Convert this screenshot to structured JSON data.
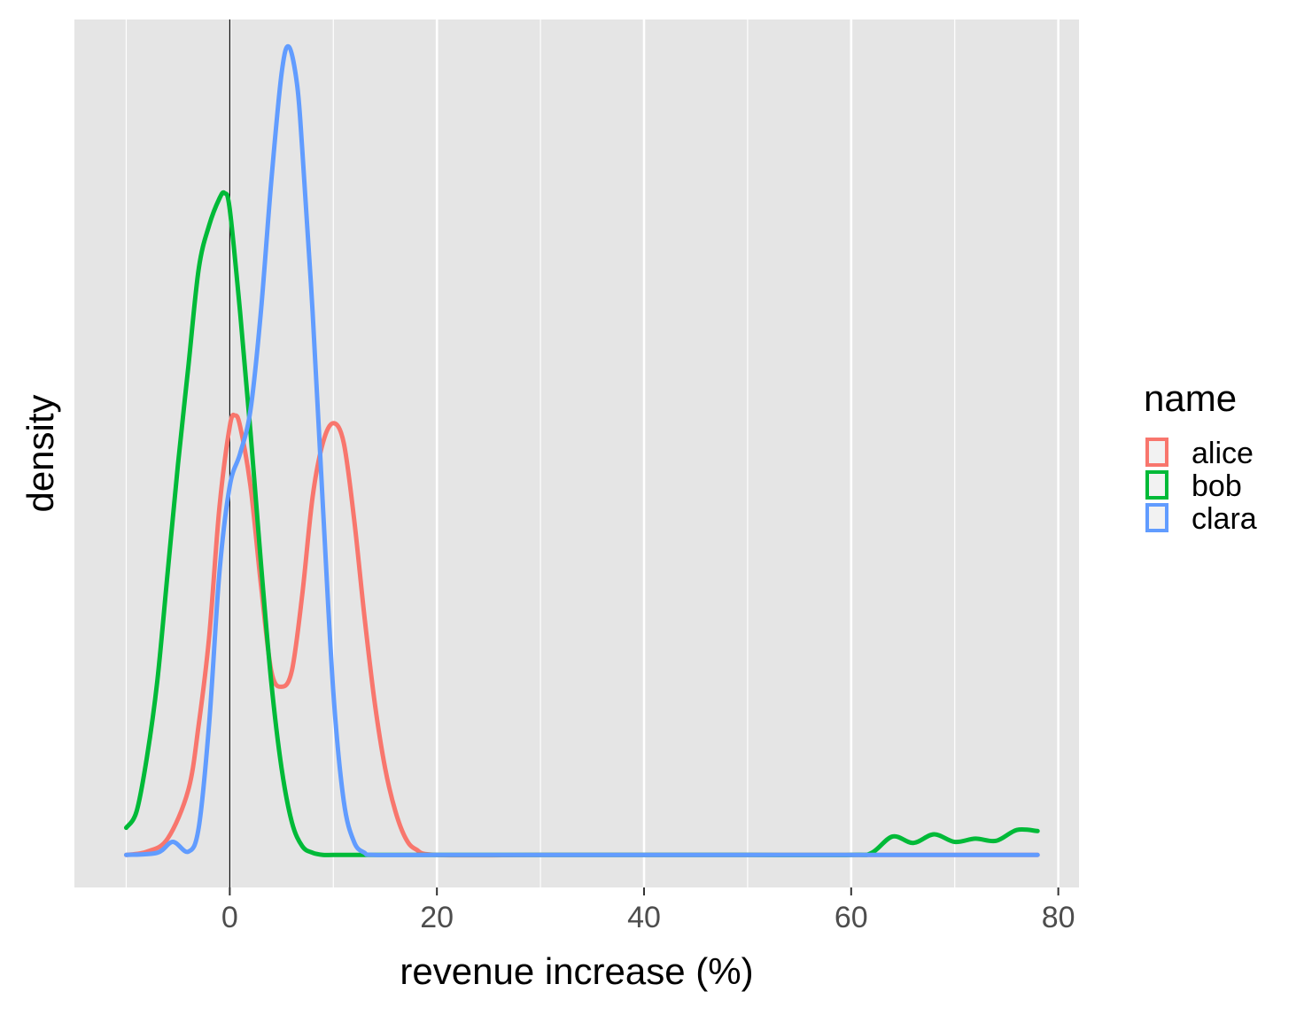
{
  "chart_data": {
    "type": "line",
    "subtype": "density",
    "title": "",
    "xlabel": "revenue increase (%)",
    "ylabel": "density",
    "xlim": [
      -15,
      82
    ],
    "ylim": [
      -0.003,
      0.077
    ],
    "x_ticks": [
      0,
      20,
      40,
      60,
      80
    ],
    "x_tick_labels": [
      "0",
      "20",
      "40",
      "60",
      "80"
    ],
    "y_tick_labels": [],
    "grid": true,
    "vline": 0,
    "legend": {
      "title": "name",
      "position": "right"
    },
    "colors": {
      "alice": "#F8766D",
      "bob": "#00BA38",
      "clara": "#619CFF"
    },
    "series": [
      {
        "name": "alice",
        "x": [
          -10,
          -8,
          -6,
          -4,
          -3,
          -2,
          -1,
          0,
          0.5,
          1,
          2,
          3,
          4,
          5,
          6,
          7,
          8,
          9,
          10,
          11,
          12,
          13,
          14,
          15,
          16,
          17,
          18,
          20,
          30,
          40,
          50,
          60,
          70,
          78
        ],
        "y": [
          0,
          0.0003,
          0.0015,
          0.006,
          0.012,
          0.02,
          0.032,
          0.0395,
          0.0405,
          0.0395,
          0.034,
          0.025,
          0.017,
          0.0155,
          0.017,
          0.024,
          0.033,
          0.038,
          0.0398,
          0.038,
          0.031,
          0.022,
          0.014,
          0.008,
          0.004,
          0.0015,
          0.0005,
          0,
          0,
          0,
          0,
          0,
          0,
          0
        ]
      },
      {
        "name": "bob",
        "x": [
          -10,
          -9,
          -8,
          -7,
          -6,
          -5,
          -4,
          -3,
          -2,
          -1,
          -0.5,
          0,
          1,
          2,
          3,
          4,
          5,
          6,
          7,
          8,
          9,
          10,
          12,
          14,
          20,
          30,
          40,
          50,
          60,
          62,
          64,
          66,
          68,
          70,
          72,
          74,
          76,
          78
        ],
        "y": [
          0.0025,
          0.004,
          0.009,
          0.016,
          0.026,
          0.036,
          0.045,
          0.054,
          0.058,
          0.0605,
          0.061,
          0.0595,
          0.05,
          0.039,
          0.027,
          0.016,
          0.008,
          0.003,
          0.0008,
          0.0002,
          0,
          0,
          0,
          0,
          0,
          0,
          0,
          0,
          0,
          0.0002,
          0.0017,
          0.0011,
          0.0019,
          0.0012,
          0.0015,
          0.0013,
          0.0023,
          0.0022
        ]
      },
      {
        "name": "clara",
        "x": [
          -10,
          -7,
          -5.5,
          -4,
          -3,
          -2,
          -1,
          0,
          1,
          2,
          3,
          4,
          5,
          5.7,
          6.5,
          7,
          8,
          9,
          10,
          11,
          12,
          13,
          14,
          20,
          40,
          60,
          78
        ],
        "y": [
          0,
          0.0002,
          0.0012,
          0.0003,
          0.0025,
          0.012,
          0.026,
          0.034,
          0.037,
          0.041,
          0.05,
          0.062,
          0.072,
          0.0745,
          0.071,
          0.065,
          0.05,
          0.032,
          0.015,
          0.005,
          0.0012,
          0.0002,
          0,
          0,
          0,
          0,
          0
        ]
      }
    ]
  }
}
